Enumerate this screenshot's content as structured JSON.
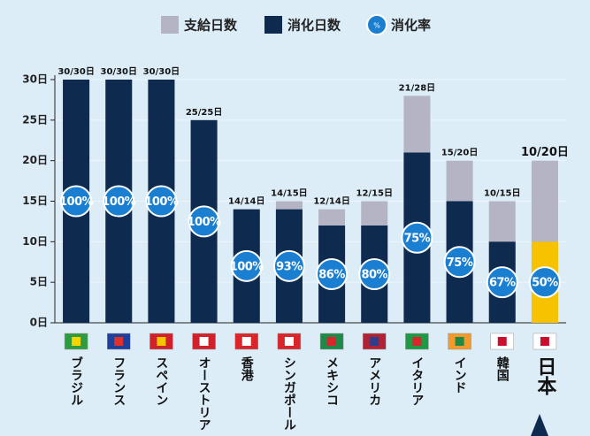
{
  "chart_data": {
    "type": "bar",
    "categories": [
      "ブラジル",
      "フランス",
      "スペイン",
      "オーストリア",
      "香港",
      "シンガポール",
      "メキシコ",
      "アメリカ",
      "イタリア",
      "インド",
      "韓国",
      "日本"
    ],
    "series": [
      {
        "name": "支給日数",
        "color": "#b4b4c4",
        "values": [
          30,
          30,
          30,
          25,
          14,
          15,
          14,
          15,
          28,
          20,
          15,
          20
        ]
      },
      {
        "name": "消化日数",
        "color": "#0e2a4e",
        "values": [
          30,
          30,
          30,
          25,
          14,
          14,
          12,
          12,
          21,
          15,
          10,
          10
        ]
      },
      {
        "name": "消化率",
        "color": "#1a7fd0",
        "values": [
          100,
          100,
          100,
          100,
          100,
          93,
          86,
          80,
          75,
          75,
          67,
          50
        ],
        "value_labels": [
          "100%",
          "100%",
          "100%",
          "100%",
          "100%",
          "93%",
          "86%",
          "80%",
          "75%",
          "75%",
          "67%",
          "50%"
        ]
      }
    ],
    "top_labels": [
      "30/30日",
      "30/30日",
      "30/30日",
      "25/25日",
      "14/14日",
      "14/15日",
      "12/14日",
      "12/15日",
      "21/28日",
      "15/20日",
      "10/15日",
      "10/20日"
    ],
    "highlight_category": "日本",
    "highlight_color": "#f7c300",
    "ylim": [
      0,
      30
    ],
    "yticks": [
      {
        "value": 0,
        "label": "0日"
      },
      {
        "value": 5,
        "label": "5日"
      },
      {
        "value": 10,
        "label": "10日"
      },
      {
        "value": 15,
        "label": "15日"
      },
      {
        "value": 20,
        "label": "20日"
      },
      {
        "value": 25,
        "label": "25日"
      },
      {
        "value": 30,
        "label": "30日"
      }
    ],
    "grid": true
  }
}
